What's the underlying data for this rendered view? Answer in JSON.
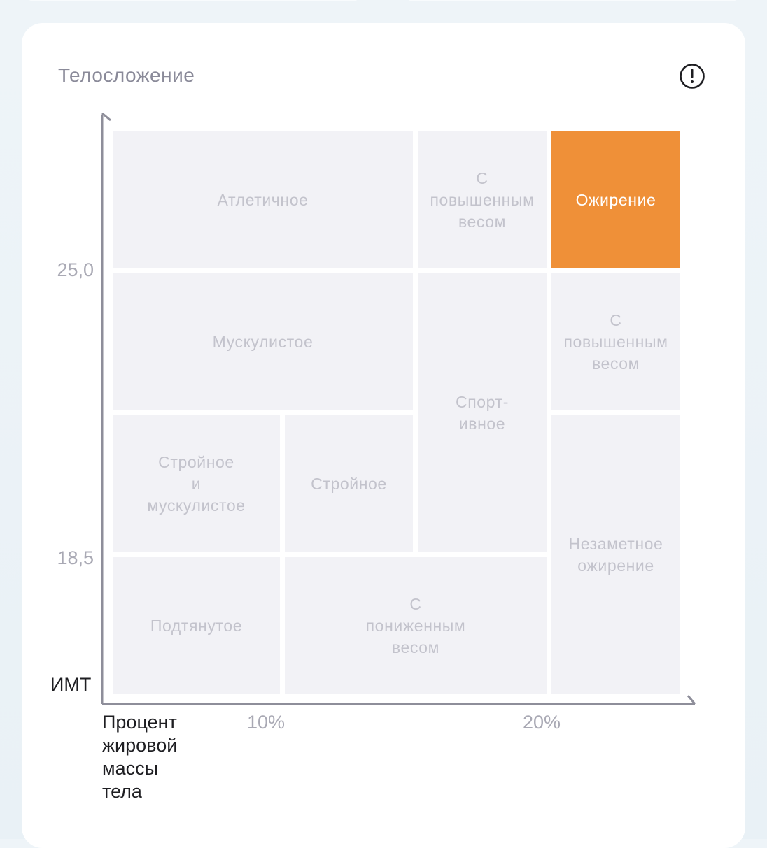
{
  "card": {
    "title": "Телосложение",
    "info_icon": "exclamation-circle-icon"
  },
  "axes": {
    "y_name": "ИМТ",
    "x_name": "Процент\nжировой\nмассы\nтела",
    "y_ticks": [
      "25,0",
      "18,5"
    ],
    "x_ticks": [
      "10%",
      "20%"
    ]
  },
  "grid": {
    "active_color": "#ef9038",
    "cell_color": "#f2f2f6",
    "cells": [
      {
        "label": "Атлетичное",
        "active": false
      },
      {
        "label": "С\nповышенным\nвесом",
        "active": false
      },
      {
        "label": "Ожирение",
        "active": true
      },
      {
        "label": "Мускулистое",
        "active": false
      },
      {
        "label": "Спорт-\nивное",
        "active": false
      },
      {
        "label": "С\nповышенным\nвесом",
        "active": false
      },
      {
        "label": "Стройное\nи\nмускулистое",
        "active": false
      },
      {
        "label": "Стройное",
        "active": false
      },
      {
        "label": "Незаметное\nожирение",
        "active": false
      },
      {
        "label": "Подтянутое",
        "active": false
      },
      {
        "label": "С\nпониженным\nвесом",
        "active": false
      }
    ]
  }
}
